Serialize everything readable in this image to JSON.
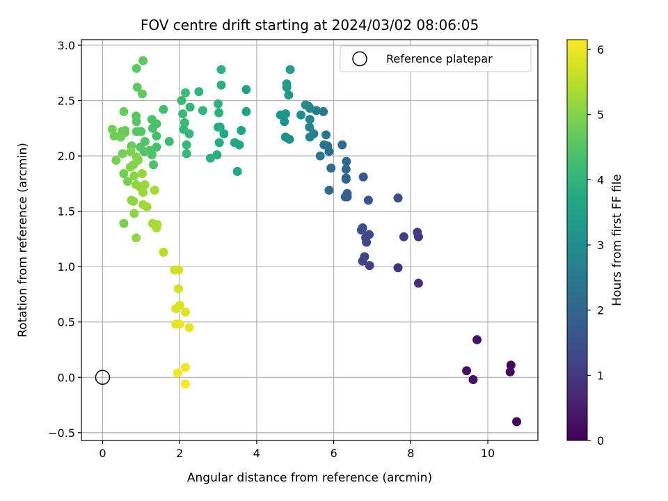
{
  "chart_data": {
    "type": "scatter",
    "title": "FOV centre drift starting at 2024/03/02 08:06:05",
    "xlabel": "Angular distance from reference (arcmin)",
    "ylabel": "Rotation from reference (arcmin)",
    "xlim": [
      -0.55,
      11.3
    ],
    "ylim": [
      -0.57,
      3.05
    ],
    "xticks": [
      0,
      2,
      4,
      6,
      8,
      10
    ],
    "yticks": [
      -0.5,
      0.0,
      0.5,
      1.0,
      1.5,
      2.0,
      2.5,
      3.0
    ],
    "xtick_labels": [
      "0",
      "2",
      "4",
      "6",
      "8",
      "10"
    ],
    "ytick_labels": [
      "−0.5",
      "0.0",
      "0.5",
      "1.0",
      "1.5",
      "2.0",
      "2.5",
      "3.0"
    ],
    "grid": true,
    "legend": {
      "position": "top-right",
      "entries": [
        "Reference platepar"
      ]
    },
    "reference": {
      "x": 0,
      "y": 0
    },
    "colorbar": {
      "label": "Hours from first FF file",
      "range": [
        0,
        6.15
      ],
      "ticks": [
        0,
        1,
        2,
        3,
        4,
        5,
        6
      ],
      "colormap": "viridis"
    },
    "series": [
      {
        "points": [
          [
            10.75,
            -0.4,
            0.05
          ],
          [
            10.6,
            0.11,
            0.1
          ],
          [
            10.58,
            0.05,
            0.15
          ],
          [
            9.62,
            -0.02,
            0.2
          ],
          [
            9.45,
            0.06,
            0.25
          ],
          [
            9.72,
            0.34,
            0.3
          ],
          [
            8.2,
            0.85,
            0.8
          ],
          [
            7.67,
            0.99,
            0.9
          ],
          [
            8.2,
            1.27,
            1.0
          ],
          [
            8.17,
            1.31,
            1.05
          ],
          [
            7.82,
            1.27,
            1.1
          ],
          [
            6.93,
            1.01,
            1.15
          ],
          [
            6.8,
            1.09,
            1.2
          ],
          [
            6.75,
            1.05,
            1.25
          ],
          [
            6.85,
            1.22,
            1.3
          ],
          [
            6.83,
            1.26,
            1.35
          ],
          [
            6.92,
            1.29,
            1.4
          ],
          [
            6.75,
            1.35,
            1.45
          ],
          [
            6.72,
            1.33,
            1.5
          ],
          [
            7.67,
            1.62,
            1.45
          ],
          [
            6.9,
            1.6,
            1.6
          ],
          [
            6.77,
            1.81,
            1.65
          ],
          [
            6.35,
            1.63,
            1.75
          ],
          [
            6.35,
            1.66,
            1.8
          ],
          [
            6.3,
            1.63,
            1.85
          ],
          [
            6.32,
            1.79,
            1.9
          ],
          [
            6.32,
            1.8,
            1.95
          ],
          [
            6.32,
            1.88,
            2.0
          ],
          [
            6.33,
            1.95,
            2.05
          ],
          [
            6.22,
            2.1,
            2.1
          ],
          [
            5.93,
            1.89,
            2.15
          ],
          [
            5.88,
            1.69,
            2.2
          ],
          [
            5.88,
            2.04,
            2.25
          ],
          [
            5.84,
            2.09,
            2.3
          ],
          [
            5.75,
            2.1,
            2.35
          ],
          [
            5.65,
            2.0,
            2.4
          ],
          [
            5.8,
            2.19,
            2.45
          ],
          [
            5.73,
            2.4,
            2.5
          ],
          [
            5.55,
            2.41,
            2.55
          ],
          [
            5.48,
            2.2,
            2.6
          ],
          [
            5.38,
            2.17,
            2.65
          ],
          [
            5.37,
            2.26,
            2.7
          ],
          [
            5.38,
            2.33,
            2.75
          ],
          [
            5.38,
            2.43,
            2.8
          ],
          [
            5.34,
            2.45,
            2.85
          ],
          [
            5.27,
            2.46,
            2.9
          ],
          [
            5.15,
            2.37,
            2.95
          ],
          [
            4.85,
            2.15,
            3.0
          ],
          [
            4.75,
            2.17,
            3.05
          ],
          [
            4.72,
            2.31,
            3.1
          ],
          [
            4.75,
            2.38,
            3.15
          ],
          [
            4.62,
            2.37,
            3.2
          ],
          [
            4.83,
            2.55,
            3.25
          ],
          [
            4.78,
            2.62,
            3.3
          ],
          [
            4.78,
            2.65,
            3.35
          ],
          [
            4.87,
            2.78,
            3.4
          ],
          [
            3.73,
            2.6,
            3.45
          ],
          [
            3.73,
            2.4,
            3.5
          ],
          [
            3.6,
            2.23,
            3.55
          ],
          [
            3.55,
            2.1,
            3.6
          ],
          [
            3.43,
            2.12,
            3.62
          ],
          [
            3.5,
            1.86,
            3.65
          ],
          [
            3.15,
            2.2,
            3.7
          ],
          [
            3.05,
            2.26,
            3.75
          ],
          [
            3.0,
            2.26,
            3.78
          ],
          [
            3.03,
            2.12,
            3.8
          ],
          [
            2.97,
            2.01,
            3.85
          ],
          [
            2.8,
            1.98,
            3.88
          ],
          [
            3.08,
            2.64,
            3.9
          ],
          [
            3.08,
            2.78,
            3.92
          ],
          [
            3.02,
            2.39,
            3.94
          ],
          [
            3.0,
            2.47,
            3.96
          ],
          [
            2.6,
            2.41,
            3.98
          ],
          [
            2.5,
            2.58,
            4.0
          ],
          [
            2.27,
            2.44,
            4.02
          ],
          [
            2.25,
            2.2,
            4.04
          ],
          [
            2.18,
            2.1,
            4.06
          ],
          [
            2.18,
            2.02,
            4.08
          ],
          [
            2.1,
            2.24,
            4.1
          ],
          [
            2.13,
            2.3,
            4.12
          ],
          [
            2.08,
            2.38,
            4.14
          ],
          [
            2.15,
            2.57,
            4.16
          ],
          [
            2.05,
            2.5,
            4.18
          ],
          [
            1.73,
            2.13,
            4.2
          ],
          [
            1.58,
            2.42,
            4.25
          ],
          [
            1.4,
            2.08,
            4.3
          ],
          [
            1.4,
            2.18,
            4.32
          ],
          [
            1.4,
            2.29,
            4.34
          ],
          [
            1.3,
            2.25,
            4.36
          ],
          [
            1.28,
            2.33,
            4.38
          ],
          [
            1.32,
            1.92,
            4.4
          ],
          [
            1.28,
            2.01,
            4.42
          ],
          [
            1.22,
            2.05,
            4.44
          ],
          [
            1.1,
            2.13,
            4.46
          ],
          [
            1.08,
            2.04,
            4.48
          ],
          [
            0.98,
            2.08,
            4.5
          ],
          [
            1.0,
            2.22,
            4.52
          ],
          [
            0.88,
            2.22,
            4.54
          ],
          [
            0.88,
            2.31,
            4.56
          ],
          [
            0.87,
            2.36,
            4.58
          ],
          [
            0.88,
            2.79,
            4.6
          ],
          [
            1.05,
            2.86,
            4.62
          ],
          [
            0.9,
            2.62,
            4.64
          ],
          [
            1.03,
            2.56,
            4.66
          ],
          [
            0.75,
            2.09,
            4.68
          ],
          [
            0.58,
            2.23,
            4.7
          ],
          [
            0.58,
            2.21,
            4.72
          ],
          [
            0.55,
            2.4,
            4.74
          ],
          [
            0.5,
            2.22,
            4.76
          ],
          [
            0.47,
            2.17,
            4.78
          ],
          [
            0.3,
            2.18,
            4.8
          ],
          [
            0.25,
            2.24,
            4.82
          ],
          [
            0.55,
            1.84,
            4.84
          ],
          [
            0.52,
            2.02,
            4.86
          ],
          [
            0.35,
            1.96,
            4.88
          ],
          [
            0.55,
            1.39,
            4.9
          ],
          [
            0.65,
            1.77,
            4.92
          ],
          [
            0.73,
            2.04,
            4.94
          ],
          [
            0.72,
            1.9,
            4.96
          ],
          [
            0.8,
            1.92,
            4.98
          ],
          [
            0.88,
            1.99,
            5.0
          ],
          [
            0.92,
            1.96,
            5.02
          ],
          [
            0.82,
            1.82,
            5.04
          ],
          [
            0.75,
            1.6,
            5.06
          ],
          [
            0.8,
            1.59,
            5.08
          ],
          [
            0.82,
            1.48,
            5.1
          ],
          [
            0.87,
            1.74,
            5.12
          ],
          [
            0.87,
            1.26,
            5.14
          ],
          [
            0.97,
            1.72,
            5.16
          ],
          [
            1.03,
            1.84,
            5.18
          ],
          [
            1.1,
            1.74,
            5.2
          ],
          [
            1.05,
            1.67,
            5.22
          ],
          [
            1.05,
            1.56,
            5.24
          ],
          [
            1.15,
            1.54,
            5.26
          ],
          [
            1.35,
            1.69,
            5.28
          ],
          [
            1.3,
            1.39,
            5.3
          ],
          [
            1.42,
            1.38,
            5.32
          ],
          [
            1.4,
            1.35,
            5.34
          ],
          [
            1.58,
            1.13,
            5.5
          ],
          [
            1.87,
            0.97,
            5.65
          ],
          [
            1.97,
            0.97,
            5.7
          ],
          [
            1.97,
            0.8,
            5.75
          ],
          [
            1.9,
            0.62,
            5.8
          ],
          [
            2.0,
            0.65,
            5.82
          ],
          [
            2.15,
            0.59,
            5.85
          ],
          [
            1.9,
            0.48,
            5.9
          ],
          [
            2.0,
            0.48,
            5.92
          ],
          [
            2.25,
            0.45,
            5.95
          ],
          [
            2.15,
            0.09,
            6.0
          ],
          [
            1.95,
            0.04,
            6.05
          ],
          [
            2.15,
            -0.06,
            6.12
          ]
        ]
      }
    ]
  }
}
